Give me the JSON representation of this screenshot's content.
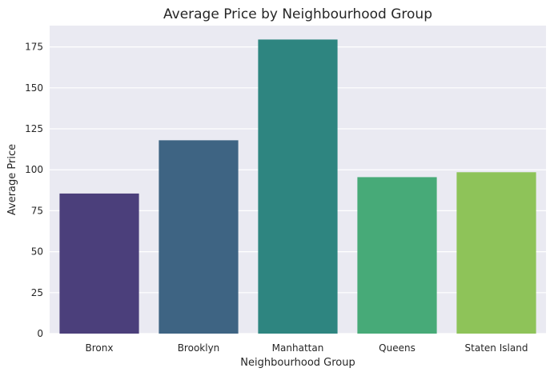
{
  "chart_data": {
    "type": "bar",
    "title": "Average Price by Neighbourhood Group",
    "xlabel": "Neighbourhood Group",
    "ylabel": "Average Price",
    "categories": [
      "Bronx",
      "Brooklyn",
      "Manhattan",
      "Queens",
      "Staten Island"
    ],
    "values": [
      85.5,
      118.0,
      179.5,
      95.5,
      98.5
    ],
    "ylim": [
      0,
      188
    ],
    "yticks": [
      0,
      25,
      50,
      75,
      100,
      125,
      150,
      175
    ],
    "colors": [
      "#4B3F7B",
      "#3E6483",
      "#2E8580",
      "#47AA78",
      "#8EC359"
    ],
    "style": {
      "plot_background": "#EAEAF2",
      "gridline_color": "#FFFFFF",
      "grid": "horizontal"
    }
  }
}
